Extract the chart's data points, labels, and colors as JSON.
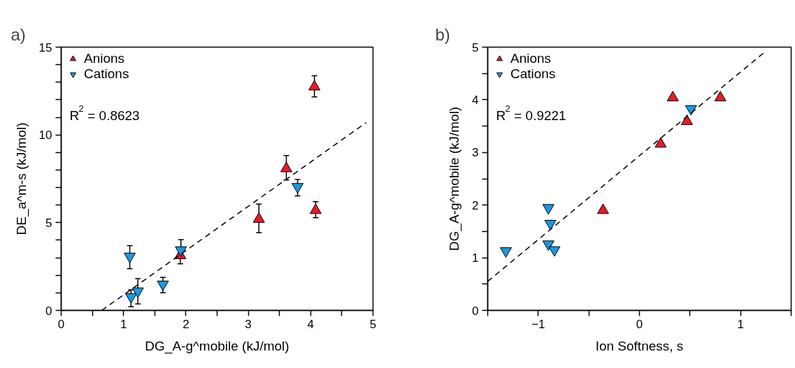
{
  "chart_data": [
    {
      "type": "scatter",
      "title": "a)",
      "xlabel": "DG_A-g^mobile (kJ/mol)",
      "ylabel": "DE_a^m-s (kJ/mol)",
      "xlim": [
        0,
        5
      ],
      "ylim": [
        0,
        15
      ],
      "xticks": [
        0,
        {
          "value": 0.5,
          "label": null
        },
        1,
        {
          "value": 1.5,
          "label": null
        },
        2,
        {
          "value": 2.5,
          "label": null
        },
        3,
        {
          "value": 3.5,
          "label": null
        },
        4,
        {
          "value": 4.5,
          "label": null
        },
        5
      ],
      "yticks": [
        0,
        {
          "value": 1,
          "label": null
        },
        {
          "value": 2,
          "label": null
        },
        {
          "value": 3,
          "label": null
        },
        {
          "value": 4,
          "label": null
        },
        5,
        {
          "value": 6,
          "label": null
        },
        {
          "value": 7,
          "label": null
        },
        {
          "value": 8,
          "label": null
        },
        {
          "value": 9,
          "label": null
        },
        10,
        {
          "value": 11,
          "label": null
        },
        {
          "value": 12,
          "label": null
        },
        {
          "value": 13,
          "label": null
        },
        {
          "value": 14,
          "label": null
        },
        15
      ],
      "grid": false,
      "legend": "top left",
      "annotations": [
        "R$^{2}$ = 0.8623"
      ],
      "series": [
        {
          "name": "Anions",
          "type": "scatter",
          "marker": "triangle",
          "color": "#e8192c",
          "x": [
            1.91,
            3.17,
            3.61,
            4.06,
            4.08
          ],
          "values": [
            3.13,
            5.2,
            8.08,
            12.74,
            5.7
          ],
          "errors": [
            [
              2.66,
              3.44
            ],
            [
              4.43,
              6.06
            ],
            [
              7.43,
              8.82
            ],
            [
              12.17,
              13.37
            ],
            [
              5.28,
              6.2
            ]
          ]
        },
        {
          "name": "Cations",
          "type": "scatter",
          "marker": "triangle_down",
          "color": "#1e96e0",
          "x": [
            1.1,
            1.12,
            1.23,
            1.63,
            1.92,
            3.79
          ],
          "values": [
            3.08,
            0.78,
            1.1,
            1.49,
            3.44,
            7.05
          ],
          "errors": [
            [
              2.38,
              3.69
            ],
            [
              0.21,
              1.17
            ],
            [
              0.37,
              1.81
            ],
            [
              1.0,
              1.88
            ],
            [
              3.0,
              4.03
            ],
            [
              6.53,
              7.46
            ]
          ]
        },
        {
          "type": "line",
          "line_style": "dashed",
          "color": "#000000",
          "x": [
            0.65,
            4.89
          ],
          "values": [
            0,
            10.7
          ]
        }
      ]
    },
    {
      "type": "scatter",
      "title": "b)",
      "xlabel": "Ion Softness, s",
      "ylabel": "DG_A-g^mobile (kJ/mol)",
      "xlim": [
        -1.5,
        1.5
      ],
      "ylim": [
        0,
        5
      ],
      "xticks": [
        {
          "value": -1.5,
          "label": null
        },
        -1,
        {
          "value": -0.5,
          "label": null
        },
        0,
        {
          "value": 0.5,
          "label": null
        },
        1,
        {
          "value": 1.5,
          "label": null
        }
      ],
      "yticks": [
        0,
        {
          "value": 0.5,
          "label": null
        },
        1,
        {
          "value": 1.5,
          "label": null
        },
        2,
        {
          "value": 2.5,
          "label": null
        },
        3,
        {
          "value": 3.5,
          "label": null
        },
        4,
        {
          "value": 4.5,
          "label": null
        },
        5
      ],
      "grid": false,
      "legend": "top left",
      "annotations": [
        "R$^{2}$ = 0.9221"
      ],
      "series": [
        {
          "name": "Anions",
          "type": "scatter",
          "marker": "triangle",
          "color": "#e8192c",
          "x": [
            0.33,
            0.8,
            0.47,
            0.21,
            -0.36
          ],
          "values": [
            4.04,
            4.04,
            3.59,
            3.16,
            1.9
          ]
        },
        {
          "name": "Cations",
          "type": "scatter",
          "marker": "triangle_down",
          "color": "#1e96e0",
          "x": [
            0.51,
            -0.9,
            -0.88,
            -0.9,
            -0.84,
            -1.32
          ],
          "values": [
            3.83,
            1.95,
            1.65,
            1.26,
            1.15,
            1.13
          ]
        },
        {
          "type": "line",
          "line_style": "dashed",
          "color": "#000000",
          "x": [
            -1.5,
            1.234
          ],
          "values": [
            0.55,
            4.9
          ]
        }
      ]
    }
  ]
}
